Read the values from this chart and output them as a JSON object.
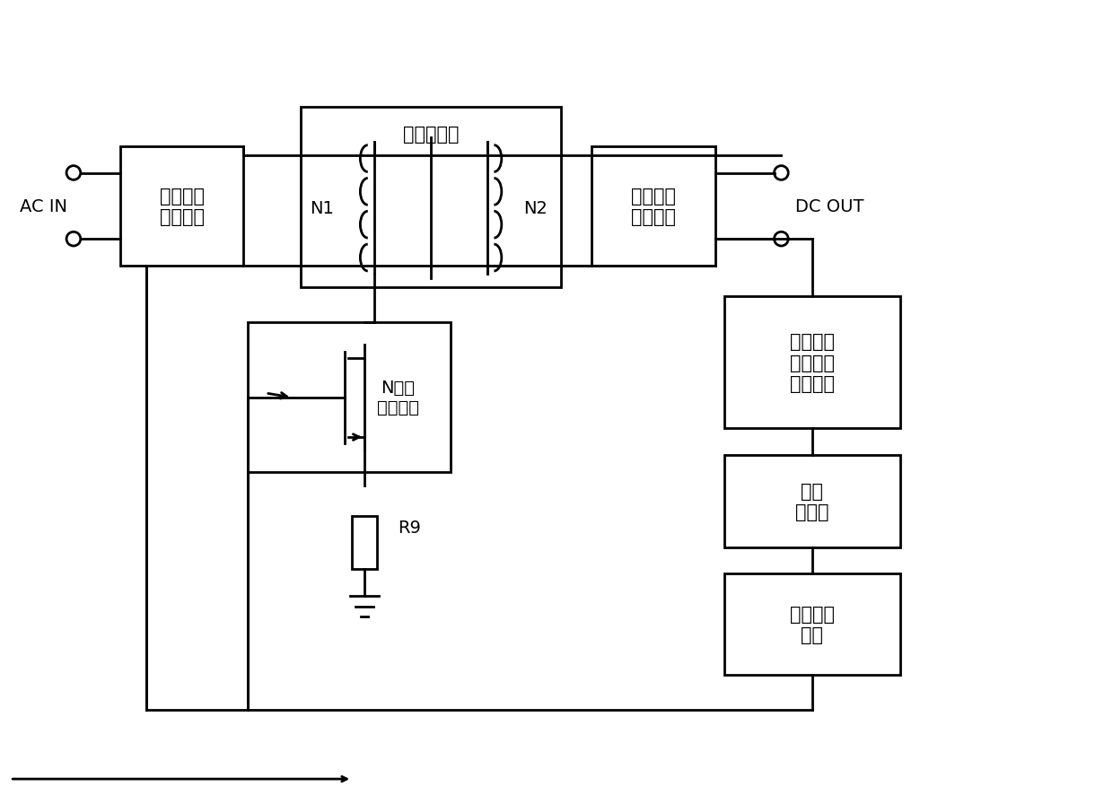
{
  "bg_color": "#ffffff",
  "lc": "#000000",
  "lw": 2.0,
  "figsize": [
    12.4,
    8.78
  ],
  "dpi": 100,
  "xlim": [
    0,
    1240
  ],
  "ylim": [
    0,
    878
  ],
  "ac_in": "AC IN",
  "dc_out": "DC OUT",
  "label_b1": "第一整流\n滤波电路",
  "label_tr": "隔离变压器",
  "label_b2": "第二整流\n滤波电路",
  "label_mf": "N沟道\n场效应管",
  "label_vc": "电压电流\n误差信号\n取样电路",
  "label_oc": "光电\n耦合器",
  "label_pw": "脉宽调制\n电路",
  "label_n1": "N1",
  "label_n2": "N2",
  "label_r9": "R9",
  "fontsize_main": 15,
  "fontsize_label": 14,
  "fontsize_small": 13
}
